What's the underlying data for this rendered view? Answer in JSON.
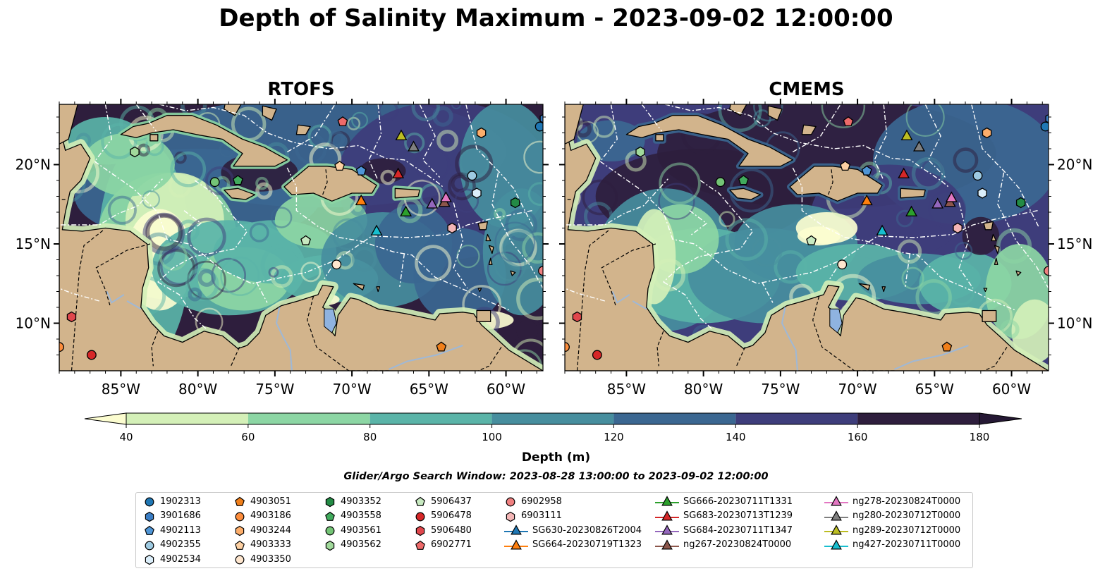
{
  "title": "Depth of Salinity Maximum - 2023-09-02 12:00:00",
  "panels": [
    {
      "name": "RTOFS",
      "variant": "rtofs"
    },
    {
      "name": "CMEMS",
      "variant": "cmems"
    }
  ],
  "map": {
    "lon_range": [
      -89,
      -57.6
    ],
    "lat_range": [
      7,
      23.8
    ],
    "x_ticks": [
      {
        "lon": -85,
        "label": "85°W"
      },
      {
        "lon": -80,
        "label": "80°W"
      },
      {
        "lon": -75,
        "label": "75°W"
      },
      {
        "lon": -70,
        "label": "70°W"
      },
      {
        "lon": -65,
        "label": "65°W"
      },
      {
        "lon": -60,
        "label": "60°W"
      }
    ],
    "y_ticks": [
      {
        "lat": 20,
        "label": "20°N"
      },
      {
        "lat": 15,
        "label": "15°N"
      },
      {
        "lat": 10,
        "label": "10°N"
      }
    ],
    "colors": {
      "land": "#d2b48c",
      "lake": "#8fb3e0",
      "river": "#9fb8d6",
      "coast": "#000000",
      "eez": "#ffffff"
    }
  },
  "colorbar": {
    "label": "Depth (m)",
    "ticks": [
      "40",
      "60",
      "80",
      "100",
      "120",
      "140",
      "160",
      "180"
    ],
    "extend": "both",
    "colors": [
      "#fcfdd0",
      "#d4f0b8",
      "#8cd6a4",
      "#5ab4a8",
      "#478e9e",
      "#3b6791",
      "#3e3d7b",
      "#2e1e3d",
      "#251834"
    ]
  },
  "search_window": "Glider/Argo Search Window: 2023-08-28 13:00:00 to 2023-09-02 12:00:00",
  "legend": [
    {
      "label": "1902313",
      "marker": "circle",
      "color": "#1f77b4",
      "lon": -57.8,
      "lat": 22.4
    },
    {
      "label": "3901686",
      "marker": "hexagon",
      "color": "#3a7dc4",
      "lon": -57.5,
      "lat": 22.9
    },
    {
      "label": "4902113",
      "marker": "pentagon",
      "color": "#4f95d6",
      "lon": -69.4,
      "lat": 19.6
    },
    {
      "label": "4902355",
      "marker": "circle",
      "color": "#9ecae1",
      "lon": -62.2,
      "lat": 19.3
    },
    {
      "label": "4902534",
      "marker": "hexagon",
      "color": "#dbeefa",
      "lon": -61.9,
      "lat": 18.2
    },
    {
      "label": "4903051",
      "marker": "pentagon",
      "color": "#f07f1a",
      "lon": -64.2,
      "lat": 8.5
    },
    {
      "label": "4903186",
      "marker": "circle",
      "color": "#fd8d3c",
      "lon": -89.0,
      "lat": 8.5
    },
    {
      "label": "4903244",
      "marker": "hexagon",
      "color": "#fdae6b",
      "lon": -61.6,
      "lat": 22.0
    },
    {
      "label": "4903333",
      "marker": "pentagon",
      "color": "#fdd0a2",
      "lon": -70.8,
      "lat": 19.9
    },
    {
      "label": "4903350",
      "marker": "circle",
      "color": "#fee6ce",
      "lon": -71.0,
      "lat": 13.7
    },
    {
      "label": "4903352",
      "marker": "hexagon",
      "color": "#238b45",
      "lon": -59.4,
      "lat": 17.6
    },
    {
      "label": "4903558",
      "marker": "pentagon",
      "color": "#41ab5d",
      "lon": -77.4,
      "lat": 19.0
    },
    {
      "label": "4903561",
      "marker": "circle",
      "color": "#74c476",
      "lon": -78.9,
      "lat": 18.9
    },
    {
      "label": "4903562",
      "marker": "hexagon",
      "color": "#a1d99b",
      "lon": -84.1,
      "lat": 20.8
    },
    {
      "label": "5906437",
      "marker": "pentagon",
      "color": "#c7e9c0",
      "lon": -73.0,
      "lat": 15.2
    },
    {
      "label": "5906478",
      "marker": "circle",
      "color": "#d62728",
      "lon": -86.9,
      "lat": 8.0
    },
    {
      "label": "5906480",
      "marker": "hexagon",
      "color": "#e0474c",
      "lon": -88.2,
      "lat": 10.4
    },
    {
      "label": "6902771",
      "marker": "pentagon",
      "color": "#ee6a6a",
      "lon": -70.6,
      "lat": 22.7
    },
    {
      "label": "6902958",
      "marker": "circle",
      "color": "#f08080",
      "lon": -57.6,
      "lat": 13.3
    },
    {
      "label": "6903111",
      "marker": "hexagon",
      "color": "#f4b6b6",
      "lon": -63.5,
      "lat": 16.0
    },
    {
      "label": "SG630-20230826T2004",
      "marker": "triangle",
      "color": "#1f77b4",
      "line": true
    },
    {
      "label": "SG664-20230719T1323",
      "marker": "triangle",
      "color": "#ff7f0e",
      "line": true,
      "lon": -69.4,
      "lat": 17.7
    },
    {
      "label": "SG666-20230711T1331",
      "marker": "triangle",
      "color": "#2ca02c",
      "line": true,
      "lon": -66.5,
      "lat": 17.0
    },
    {
      "label": "SG683-20230713T1239",
      "marker": "triangle",
      "color": "#d62728",
      "line": true,
      "lon": -67.0,
      "lat": 19.4
    },
    {
      "label": "SG684-20230711T1347",
      "marker": "triangle",
      "color": "#9467bd",
      "line": true,
      "lon": -64.8,
      "lat": 17.5
    },
    {
      "label": "ng267-20230824T0000",
      "marker": "triangle",
      "color": "#8c564b",
      "line": true,
      "lon": -64.0,
      "lat": 17.6
    },
    {
      "label": "ng278-20230824T0000",
      "marker": "triangle",
      "color": "#e377c2",
      "line": true,
      "lon": -63.9,
      "lat": 17.9
    },
    {
      "label": "ng280-20230712T0000",
      "marker": "triangle",
      "color": "#7f7f7f",
      "line": true,
      "lon": -66.0,
      "lat": 21.1
    },
    {
      "label": "ng289-20230712T0000",
      "marker": "triangle",
      "color": "#bcbd22",
      "line": true,
      "lon": -66.8,
      "lat": 21.8
    },
    {
      "label": "ng427-20230711T0000",
      "marker": "triangle",
      "color": "#17becf",
      "line": true,
      "lon": -68.4,
      "lat": 15.8
    }
  ]
}
